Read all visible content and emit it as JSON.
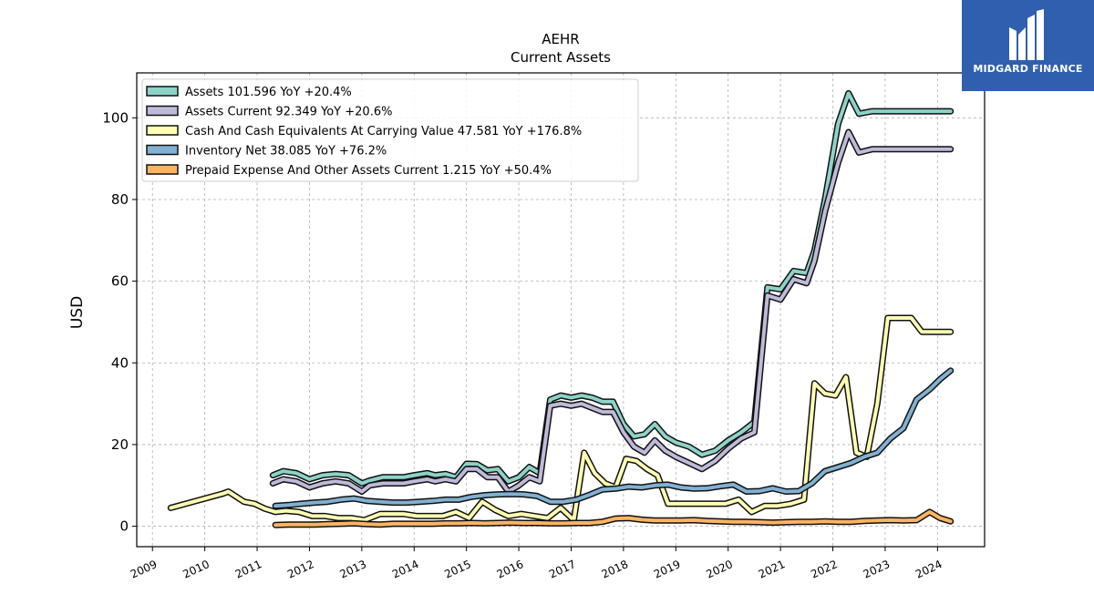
{
  "chart_data": {
    "type": "line",
    "title": "AEHR",
    "subtitle": "Current  Assets",
    "ylabel": "USD",
    "xlabel": "",
    "xlim": [
      2008.7,
      2024.9
    ],
    "ylim": [
      -5,
      111
    ],
    "xticks": [
      "2009",
      "2010",
      "2011",
      "2012",
      "2013",
      "2014",
      "2015",
      "2016",
      "2017",
      "2018",
      "2019",
      "2020",
      "2021",
      "2022",
      "2023",
      "2024"
    ],
    "yticks": [
      0,
      20,
      40,
      60,
      80,
      100
    ],
    "grid": true,
    "legend_position": "top-left",
    "series": [
      {
        "name": "Assets  101.596 YoY +20.4%",
        "color": "#8dd3c7",
        "x": [
          2011.3,
          2011.5,
          2011.75,
          2012.0,
          2012.25,
          2012.5,
          2012.75,
          2013.0,
          2013.15,
          2013.4,
          2013.6,
          2013.8,
          2014.0,
          2014.25,
          2014.4,
          2014.6,
          2014.8,
          2015.0,
          2015.2,
          2015.4,
          2015.6,
          2015.8,
          2016.0,
          2016.2,
          2016.4,
          2016.6,
          2016.8,
          2017.0,
          2017.2,
          2017.4,
          2017.6,
          2017.8,
          2018.0,
          2018.2,
          2018.4,
          2018.6,
          2018.8,
          2019.0,
          2019.25,
          2019.5,
          2019.75,
          2020.0,
          2020.25,
          2020.5,
          2020.75,
          2021.0,
          2021.25,
          2021.5,
          2021.65,
          2021.85,
          2022.1,
          2022.3,
          2022.5,
          2022.75,
          2022.95,
          2023.15,
          2023.4,
          2023.65,
          2023.85,
          2024.05,
          2024.25
        ],
        "y": [
          12.5,
          13.5,
          13,
          11.5,
          12.5,
          12.8,
          12.5,
          10.5,
          11.2,
          12,
          12,
          12,
          12.5,
          13,
          12.5,
          12.8,
          12,
          15.3,
          15.2,
          13.7,
          14,
          11,
          12,
          14.5,
          13,
          31,
          32,
          31.5,
          32,
          31.5,
          30.5,
          30.5,
          25,
          22,
          22.5,
          25,
          22,
          20.5,
          19.5,
          17.5,
          18.5,
          21,
          23,
          25.5,
          58.5,
          58,
          62.5,
          62,
          67.5,
          80,
          98.5,
          106,
          101,
          101.6,
          101.6,
          101.6,
          101.6,
          101.6,
          101.6,
          101.6,
          101.6
        ]
      },
      {
        "name": "Assets Current  92.349 YoY +20.6%",
        "color": "#bebada",
        "x": [
          2011.3,
          2011.5,
          2011.75,
          2012.0,
          2012.25,
          2012.5,
          2012.75,
          2013.0,
          2013.15,
          2013.4,
          2013.6,
          2013.8,
          2014.0,
          2014.25,
          2014.4,
          2014.6,
          2014.8,
          2015.0,
          2015.2,
          2015.4,
          2015.6,
          2015.8,
          2016.0,
          2016.2,
          2016.4,
          2016.6,
          2016.8,
          2017.0,
          2017.2,
          2017.4,
          2017.6,
          2017.8,
          2018.0,
          2018.2,
          2018.4,
          2018.6,
          2018.8,
          2019.0,
          2019.25,
          2019.5,
          2019.75,
          2020.0,
          2020.25,
          2020.5,
          2020.75,
          2021.0,
          2021.25,
          2021.5,
          2021.65,
          2021.85,
          2022.1,
          2022.3,
          2022.5,
          2022.75,
          2022.95,
          2023.15,
          2023.4,
          2023.65,
          2023.85,
          2024.05,
          2024.25
        ],
        "y": [
          10.5,
          11.5,
          11,
          9.5,
          10.5,
          11,
          10.5,
          8.5,
          10,
          10.5,
          10.5,
          10.5,
          11,
          11.5,
          11,
          11.5,
          11,
          14,
          14,
          12,
          12,
          8.5,
          10,
          12,
          11,
          29.5,
          30,
          29.5,
          30,
          29,
          28,
          28,
          23,
          19.5,
          18,
          21,
          18.5,
          17,
          15.5,
          14,
          16,
          19,
          21.5,
          23,
          56.5,
          55.5,
          60.5,
          59.5,
          65,
          77,
          89,
          96.5,
          91.5,
          92.3,
          92.3,
          92.3,
          92.3,
          92.3,
          92.3,
          92.3,
          92.3
        ]
      },
      {
        "name": "Cash And Cash Equivalents At Carrying Value  47.581 YoY +176.8%",
        "color": "#ffffb3",
        "x": [
          2009.35,
          2010.35,
          2010.45,
          2010.75,
          2010.95,
          2011.15,
          2011.35,
          2011.55,
          2011.8,
          2012.05,
          2012.3,
          2012.55,
          2012.8,
          2013.05,
          2013.35,
          2013.55,
          2013.8,
          2014.05,
          2014.3,
          2014.55,
          2014.8,
          2015.05,
          2015.3,
          2015.55,
          2015.8,
          2016.05,
          2016.3,
          2016.55,
          2016.8,
          2017.05,
          2017.25,
          2017.45,
          2017.65,
          2017.85,
          2018.05,
          2018.25,
          2018.45,
          2018.65,
          2018.85,
          2019.15,
          2019.35,
          2019.55,
          2019.75,
          2019.95,
          2020.2,
          2020.45,
          2020.7,
          2020.95,
          2021.2,
          2021.45,
          2021.65,
          2021.85,
          2022.05,
          2022.25,
          2022.45,
          2022.65,
          2022.85,
          2023.05,
          2023.25,
          2023.5,
          2023.7,
          2023.95,
          2024.25
        ],
        "y": [
          4.5,
          8,
          8.5,
          6,
          5.5,
          4.3,
          3.5,
          3.8,
          3.5,
          2.5,
          2.5,
          2,
          2,
          1.5,
          3,
          3,
          3,
          2.5,
          2.5,
          2.5,
          3.5,
          2,
          6,
          4,
          2.5,
          3,
          2.5,
          2,
          4.5,
          1.5,
          18,
          13,
          10.5,
          9.5,
          16.5,
          16,
          14,
          12.5,
          5.5,
          5.5,
          5.5,
          5.5,
          5.5,
          5.5,
          6.5,
          3.5,
          5,
          5,
          5.5,
          6.5,
          35,
          32.5,
          32,
          36.5,
          18,
          17,
          30,
          51,
          51,
          51,
          47.6,
          47.6,
          47.6
        ]
      },
      {
        "name": "Inventory Net  38.085 YoY +76.2%",
        "color": "#80b1d3",
        "x": [
          2011.35,
          2011.6,
          2011.85,
          2012.1,
          2012.35,
          2012.6,
          2012.85,
          2013.1,
          2013.35,
          2013.6,
          2013.85,
          2014.1,
          2014.35,
          2014.6,
          2014.85,
          2015.1,
          2015.35,
          2015.6,
          2015.85,
          2016.1,
          2016.35,
          2016.6,
          2016.85,
          2017.1,
          2017.35,
          2017.6,
          2017.85,
          2018.1,
          2018.35,
          2018.6,
          2018.85,
          2019.1,
          2019.35,
          2019.6,
          2019.85,
          2020.1,
          2020.35,
          2020.6,
          2020.85,
          2021.1,
          2021.35,
          2021.6,
          2021.85,
          2022.1,
          2022.35,
          2022.6,
          2022.85,
          2023.1,
          2023.35,
          2023.6,
          2023.85,
          2024.05,
          2024.25
        ],
        "y": [
          5,
          5.2,
          5.5,
          5.8,
          6,
          6.5,
          6.8,
          6.2,
          6,
          5.8,
          5.8,
          6,
          6.2,
          6.5,
          6.5,
          7.2,
          7.6,
          7.8,
          7.9,
          7.8,
          7.4,
          6,
          6,
          6.5,
          7.7,
          9,
          9.2,
          9.7,
          9.5,
          10,
          10.2,
          9.5,
          9.2,
          9.3,
          9.8,
          10.2,
          8.5,
          8.6,
          9.3,
          8.5,
          8.6,
          10.5,
          13.5,
          14.5,
          15.5,
          17,
          18,
          21.5,
          24,
          31,
          33.5,
          36,
          38.1
        ]
      },
      {
        "name": "Prepaid Expense And Other Assets Current  1.215 YoY +50.4%",
        "color": "#fdb462",
        "x": [
          2011.35,
          2011.6,
          2011.85,
          2012.1,
          2012.35,
          2012.6,
          2012.85,
          2013.1,
          2013.35,
          2013.6,
          2013.85,
          2014.1,
          2014.35,
          2014.6,
          2014.85,
          2015.1,
          2015.35,
          2015.6,
          2015.85,
          2016.1,
          2016.35,
          2016.6,
          2016.85,
          2017.1,
          2017.35,
          2017.6,
          2017.85,
          2018.1,
          2018.35,
          2018.6,
          2018.85,
          2019.1,
          2019.35,
          2019.6,
          2019.85,
          2020.1,
          2020.35,
          2020.6,
          2020.85,
          2021.1,
          2021.35,
          2021.6,
          2021.85,
          2022.1,
          2022.35,
          2022.6,
          2022.85,
          2023.1,
          2023.35,
          2023.6,
          2023.85,
          2024.05,
          2024.25
        ],
        "y": [
          0.3,
          0.4,
          0.4,
          0.4,
          0.5,
          0.6,
          0.7,
          0.5,
          0.4,
          0.6,
          0.6,
          0.6,
          0.6,
          0.7,
          0.7,
          0.8,
          0.7,
          0.8,
          0.9,
          0.8,
          0.8,
          0.7,
          0.7,
          0.8,
          0.8,
          1.1,
          1.9,
          2,
          1.6,
          1.4,
          1.4,
          1.4,
          1.5,
          1.3,
          1.2,
          1.1,
          1.1,
          1.0,
          0.9,
          1.0,
          1.1,
          1.1,
          1.2,
          1.1,
          1.1,
          1.3,
          1.4,
          1.5,
          1.4,
          1.5,
          3.5,
          2,
          1.2
        ]
      }
    ]
  },
  "logo": {
    "text": "MIDGARD FINANCE",
    "color": "#2f5fae"
  }
}
